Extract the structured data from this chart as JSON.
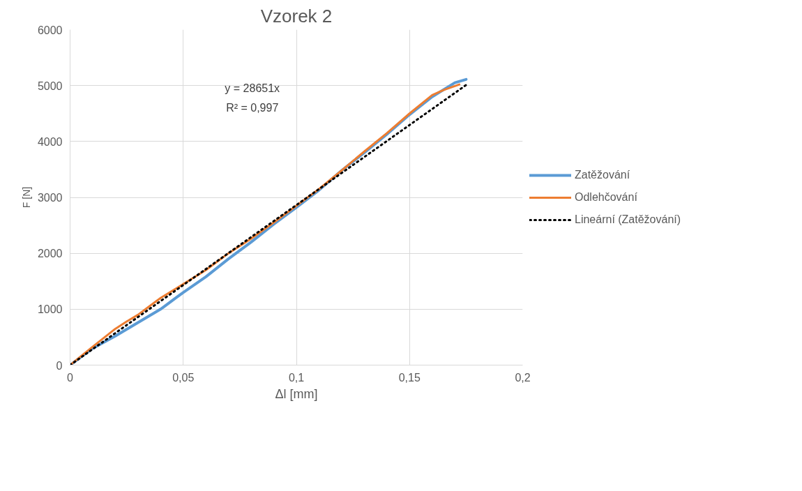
{
  "chart_data": {
    "type": "line",
    "title": "Vzorek 2",
    "xlabel": "Δl [mm]",
    "ylabel": "F [N]",
    "annotations": [
      "y = 28651x",
      "R² = 0,997"
    ],
    "xlim": [
      0,
      0.2
    ],
    "xticks": [
      0,
      {
        "value": 0.05,
        "label": "0,05"
      },
      {
        "value": 0.1,
        "label": "0,1"
      },
      {
        "value": 0.15,
        "label": "0,15"
      },
      {
        "value": 0.2,
        "label": "0,2"
      }
    ],
    "ylim": [
      0,
      6000
    ],
    "yticks": [
      0,
      1000,
      2000,
      3000,
      4000,
      5000,
      6000
    ],
    "grid": true,
    "legend": "right",
    "series": [
      {
        "name": "Zatěžování",
        "color": "#5b9bd5",
        "line_style": "solid",
        "x": [
          0,
          0.005,
          0.01,
          0.02,
          0.03,
          0.04,
          0.05,
          0.06,
          0.07,
          0.08,
          0.09,
          0.1,
          0.11,
          0.12,
          0.13,
          0.14,
          0.15,
          0.16,
          0.17,
          0.175
        ],
        "values": [
          0,
          150,
          300,
          520,
          760,
          1000,
          1300,
          1580,
          1900,
          2200,
          2520,
          2820,
          3130,
          3480,
          3800,
          4130,
          4480,
          4800,
          5050,
          5110
        ]
      },
      {
        "name": "Odlehčování",
        "color": "#ed7d31",
        "line_style": "solid",
        "x": [
          0,
          0.01,
          0.02,
          0.025,
          0.03,
          0.035,
          0.04,
          0.05,
          0.06,
          0.07,
          0.08,
          0.09,
          0.1,
          0.11,
          0.12,
          0.13,
          0.14,
          0.15,
          0.16,
          0.165,
          0.172
        ],
        "values": [
          0,
          330,
          650,
          780,
          900,
          1050,
          1200,
          1450,
          1700,
          2000,
          2260,
          2550,
          2850,
          3150,
          3480,
          3820,
          4150,
          4500,
          4830,
          4920,
          5020
        ]
      },
      {
        "name": "Lineární (Zatěžování)",
        "color": "#000000",
        "line_style": "dotted",
        "x": [
          0,
          0.175
        ],
        "values": [
          0,
          5010
        ]
      }
    ]
  }
}
